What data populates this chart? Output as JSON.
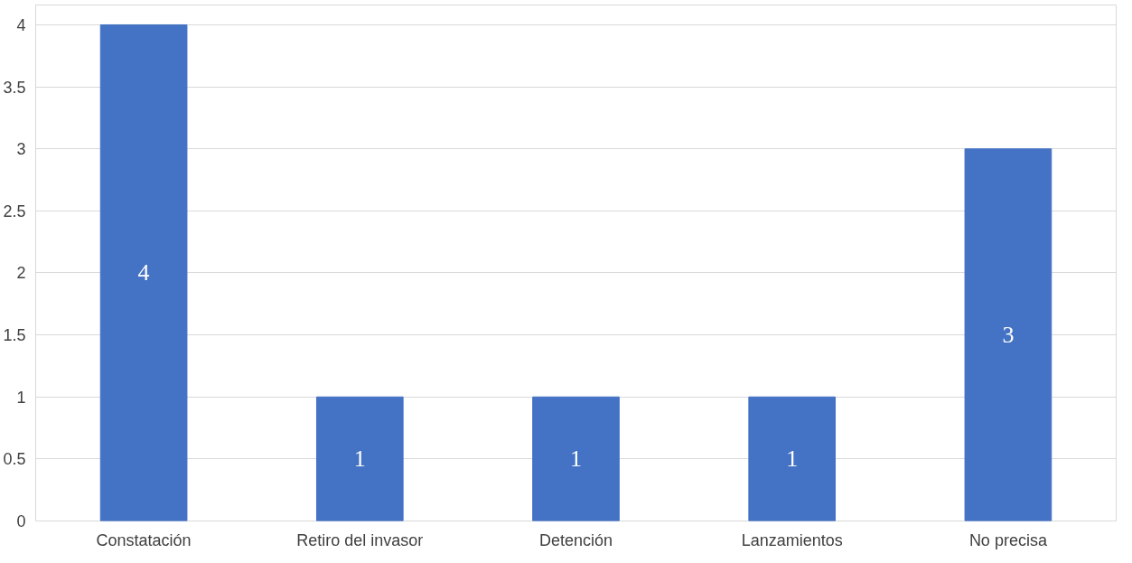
{
  "chart_data": {
    "type": "bar",
    "categories": [
      "Constatación",
      "Retiro del invasor",
      "Detención",
      "Lanzamientos",
      "No precisa"
    ],
    "values": [
      4,
      1,
      1,
      1,
      3
    ],
    "color": "#4472c4",
    "ylim": [
      0,
      4
    ],
    "yticks": [
      0,
      0.5,
      1,
      1.5,
      2,
      2.5,
      3,
      3.5,
      4
    ],
    "grid": "y",
    "data_labels": true
  }
}
